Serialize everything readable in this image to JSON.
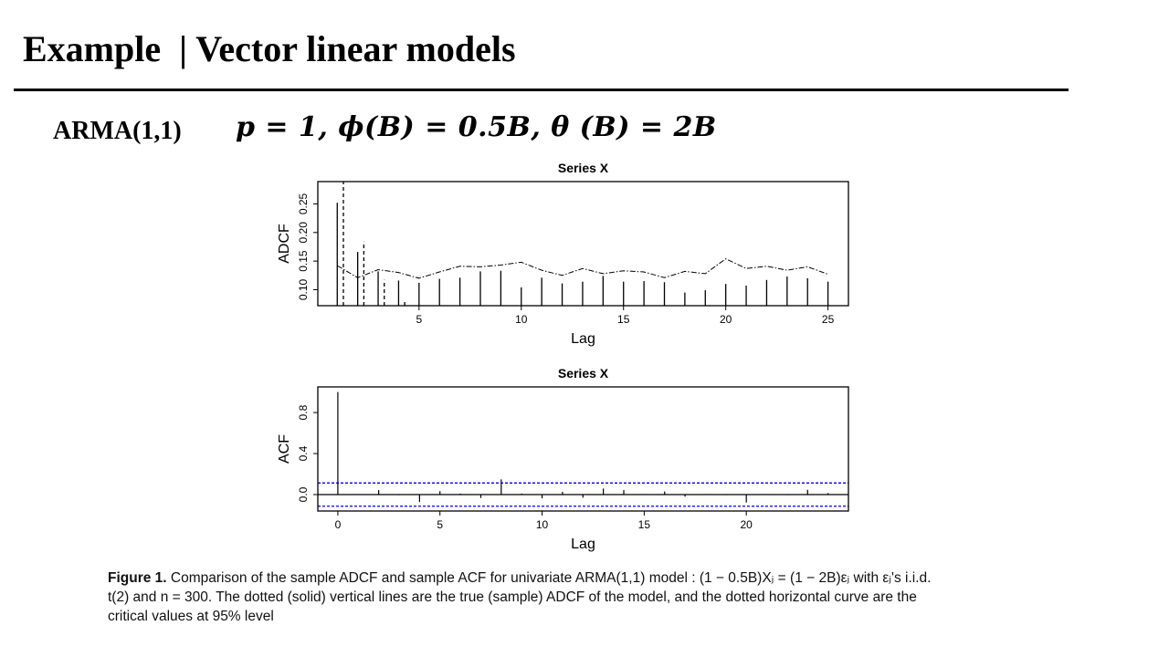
{
  "slide": {
    "title": "Example  | Vector linear models",
    "model": "ARMA(1,1)",
    "formula": "p = 1, ϕ(B) = 0.5B, θ (B) = 2B"
  },
  "caption": {
    "label": "Figure 1.",
    "line1": " Comparison of the sample ADCF and sample ACF for univariate ARMA(1,1) model : (1 − 0.5B)Xⱼ = (1 − 2B)εⱼ with εⱼ's i.i.d.",
    "line2": "t(2) and n = 300. The dotted (solid) vertical lines are the true (sample) ADCF of the model, and the dotted horizontal curve are the",
    "line3": "critical values at 95% level"
  },
  "chart_data": [
    {
      "type": "bar",
      "title": "Series X",
      "xlabel": "Lag",
      "ylabel": "ADCF",
      "xlim": [
        0.05,
        26
      ],
      "ylim": [
        0.072,
        0.289
      ],
      "xticks": [
        5,
        10,
        15,
        20,
        25
      ],
      "yticks": [
        0.1,
        0.15,
        0.2,
        0.25
      ],
      "ytick_labels": [
        "0.10",
        "0.15",
        "0.20",
        "0.25"
      ],
      "sample_adcf": {
        "style": "solid vertical lines",
        "lags": [
          1,
          2,
          3,
          4,
          5,
          6,
          7,
          8,
          9,
          10,
          11,
          12,
          13,
          14,
          15,
          16,
          17,
          18,
          19,
          20,
          21,
          22,
          23,
          24,
          25
        ],
        "values": [
          0.252,
          0.166,
          0.132,
          0.116,
          0.112,
          0.119,
          0.121,
          0.132,
          0.133,
          0.104,
          0.121,
          0.111,
          0.114,
          0.124,
          0.114,
          0.115,
          0.113,
          0.095,
          0.099,
          0.11,
          0.107,
          0.117,
          0.123,
          0.12,
          0.114
        ]
      },
      "true_adcf": {
        "style": "dashed vertical lines",
        "lags": [
          1.3,
          2.3,
          3.3,
          4.3
        ],
        "values": [
          0.35,
          0.184,
          0.117,
          0.079
        ]
      },
      "critical_values": {
        "style": "dash-dot curve",
        "lags": [
          1,
          2,
          3,
          4,
          5,
          6,
          7,
          8,
          9,
          10,
          11,
          12,
          13,
          14,
          15,
          16,
          17,
          18,
          19,
          20,
          21,
          22,
          23,
          24,
          25
        ],
        "values": [
          0.142,
          0.121,
          0.135,
          0.13,
          0.12,
          0.131,
          0.141,
          0.14,
          0.143,
          0.148,
          0.134,
          0.125,
          0.137,
          0.128,
          0.133,
          0.131,
          0.121,
          0.132,
          0.128,
          0.154,
          0.137,
          0.141,
          0.134,
          0.14,
          0.127
        ]
      },
      "grid": false
    },
    {
      "type": "bar",
      "title": "Series  X",
      "xlabel": "Lag",
      "ylabel": "ACF",
      "xlim": [
        -0.98,
        25
      ],
      "ylim": [
        -0.16,
        1.05
      ],
      "xticks": [
        0,
        5,
        10,
        15,
        20
      ],
      "yticks": [
        0.0,
        0.4,
        0.8
      ],
      "ytick_labels": [
        "0.0",
        "0.4",
        "0.8"
      ],
      "acf": {
        "lags": [
          0,
          1,
          2,
          3,
          4,
          5,
          6,
          7,
          8,
          9,
          10,
          11,
          12,
          13,
          14,
          15,
          16,
          17,
          18,
          19,
          20,
          21,
          22,
          23,
          24
        ],
        "values": [
          1.0,
          0.005,
          0.044,
          -0.005,
          -0.071,
          0.033,
          0.01,
          -0.033,
          0.148,
          0.01,
          -0.036,
          0.027,
          -0.03,
          0.059,
          0.044,
          0.005,
          0.03,
          -0.02,
          0.005,
          -0.005,
          -0.077,
          0.005,
          -0.005,
          0.047,
          0.015
        ]
      },
      "confidence_bound": 0.113,
      "confidence_color": "#0000ee",
      "grid": false
    }
  ]
}
